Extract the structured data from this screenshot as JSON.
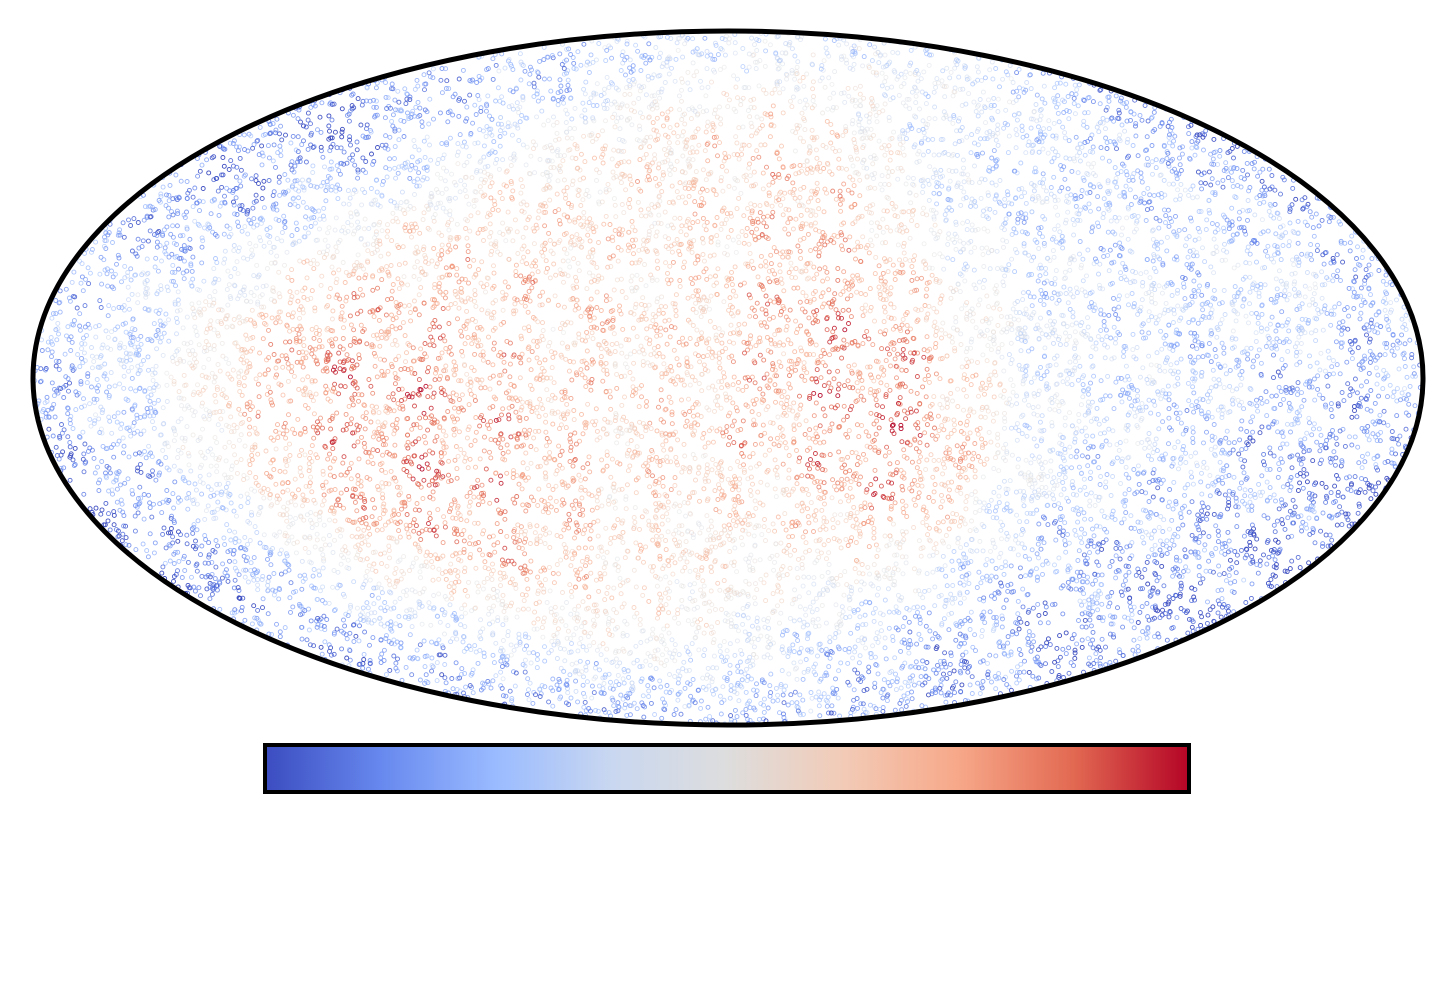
{
  "chart_data": {
    "type": "scatter",
    "projection": "mollweide",
    "title": "",
    "xlabel": "",
    "ylabel": "",
    "grid": false,
    "colormap": "coolwarm",
    "colormap_stops": [
      "#3b4cc0",
      "#6788ee",
      "#9abbff",
      "#c9d7f0",
      "#dddddd",
      "#f2cbb7",
      "#f7a889",
      "#e26952",
      "#b40426"
    ],
    "colorbar": {
      "orientation": "horizontal",
      "placement": "bottom",
      "tick_labels": []
    },
    "point_style": {
      "marker": "hollow-circle",
      "approx_count": 14000
    },
    "value_scale": [
      -1,
      1
    ],
    "sky_regions": [
      {
        "lon": -165,
        "lat": 45,
        "value": -1.0,
        "extent": 30
      },
      {
        "lon": -140,
        "lat": 55,
        "value": -0.9,
        "extent": 20
      },
      {
        "lon": -165,
        "lat": -40,
        "value": -1.0,
        "extent": 28
      },
      {
        "lon": -140,
        "lat": -55,
        "value": -0.8,
        "extent": 22
      },
      {
        "lon": -110,
        "lat": -70,
        "value": -0.6,
        "extent": 20
      },
      {
        "lon": -100,
        "lat": 70,
        "value": -0.6,
        "extent": 18
      },
      {
        "lon": -170,
        "lat": 10,
        "value": -0.35,
        "extent": 18
      },
      {
        "lon": -120,
        "lat": 5,
        "value": 0.75,
        "extent": 22
      },
      {
        "lon": -90,
        "lat": -25,
        "value": 0.85,
        "extent": 22
      },
      {
        "lon": -110,
        "lat": -20,
        "value": 0.65,
        "extent": 18
      },
      {
        "lon": -60,
        "lat": -15,
        "value": 0.55,
        "extent": 22
      },
      {
        "lon": -50,
        "lat": 30,
        "value": 0.35,
        "extent": 24
      },
      {
        "lon": -10,
        "lat": 40,
        "value": 0.2,
        "extent": 22
      },
      {
        "lon": 20,
        "lat": 50,
        "value": 0.8,
        "extent": 14
      },
      {
        "lon": 30,
        "lat": 20,
        "value": 0.65,
        "extent": 18
      },
      {
        "lon": 40,
        "lat": -5,
        "value": 0.95,
        "extent": 20
      },
      {
        "lon": 45,
        "lat": -25,
        "value": 0.9,
        "extent": 14
      },
      {
        "lon": 0,
        "lat": -10,
        "value": 0.45,
        "extent": 20
      },
      {
        "lon": -20,
        "lat": -45,
        "value": 0.1,
        "extent": 20
      },
      {
        "lon": 20,
        "lat": -40,
        "value": -0.05,
        "extent": 16
      },
      {
        "lon": 80,
        "lat": 30,
        "value": -0.45,
        "extent": 26
      },
      {
        "lon": 120,
        "lat": 40,
        "value": -0.45,
        "extent": 26
      },
      {
        "lon": 160,
        "lat": 10,
        "value": -0.75,
        "extent": 20
      },
      {
        "lon": 100,
        "lat": -10,
        "value": -0.3,
        "extent": 20
      },
      {
        "lon": 120,
        "lat": -45,
        "value": -0.75,
        "extent": 24
      },
      {
        "lon": 70,
        "lat": -60,
        "value": -0.7,
        "extent": 22
      },
      {
        "lon": 30,
        "lat": -75,
        "value": -0.55,
        "extent": 16
      },
      {
        "lon": 0,
        "lat": 75,
        "value": -0.2,
        "extent": 16
      },
      {
        "lon": 110,
        "lat": 75,
        "value": 0.3,
        "extent": 14
      },
      {
        "lon": 150,
        "lat": 20,
        "value": 0.2,
        "extent": 10
      }
    ]
  }
}
